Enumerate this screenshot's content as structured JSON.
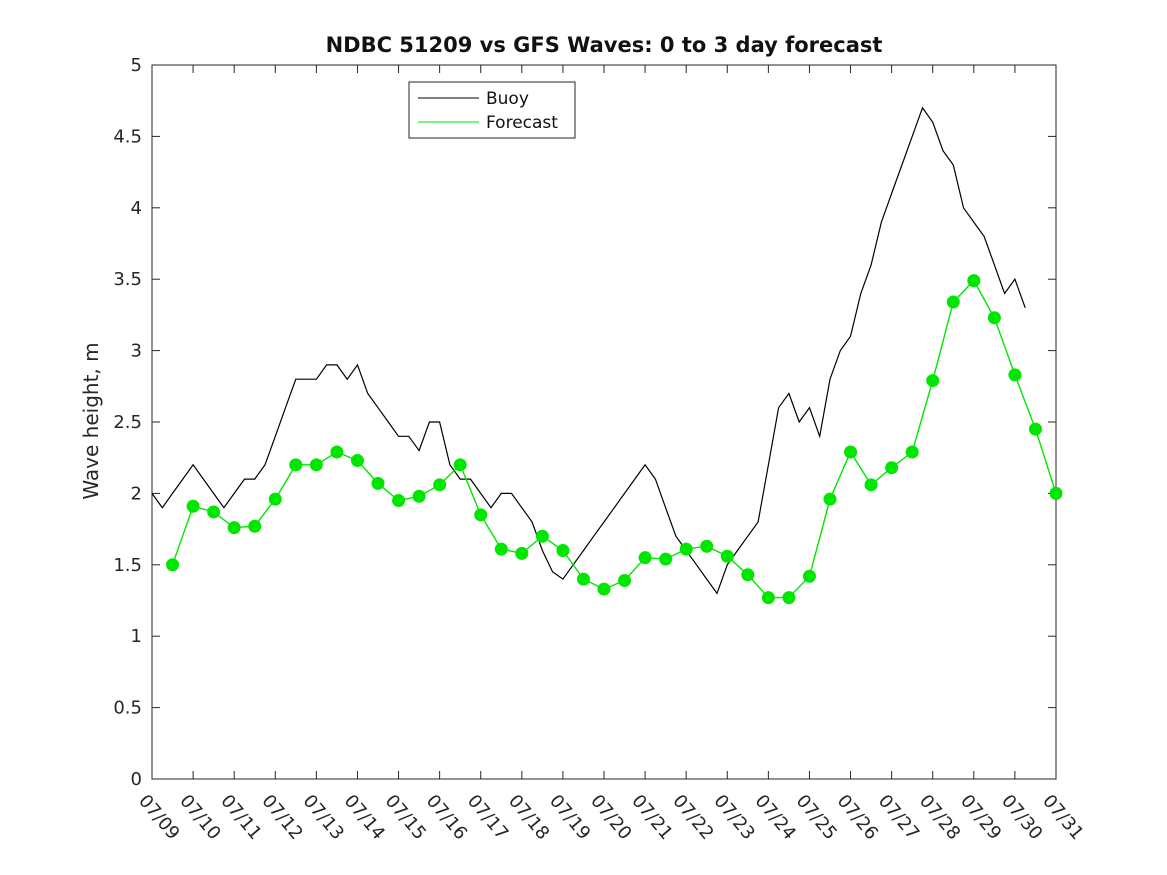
{
  "chart_data": {
    "type": "line",
    "title": "NDBC 51209 vs GFS Waves: 0 to 3 day forecast",
    "ylabel": "Wave height, m",
    "xlabel": "",
    "xlim": [
      0,
      22
    ],
    "ylim": [
      0,
      5
    ],
    "x_tick_labels": [
      "07/09",
      "07/10",
      "07/11",
      "07/12",
      "07/13",
      "07/14",
      "07/15",
      "07/16",
      "07/17",
      "07/18",
      "07/19",
      "07/20",
      "07/21",
      "07/22",
      "07/23",
      "07/24",
      "07/25",
      "07/26",
      "07/27",
      "07/28",
      "07/29",
      "07/30",
      "07/31"
    ],
    "y_ticks": [
      0,
      0.5,
      1,
      1.5,
      2,
      2.5,
      3,
      3.5,
      4,
      4.5,
      5
    ],
    "y_tick_labels": [
      "0",
      "0.5",
      "1",
      "1.5",
      "2",
      "2.5",
      "3",
      "3.5",
      "4",
      "4.5",
      "5"
    ],
    "grid": false,
    "legend_position": "top-center",
    "series": [
      {
        "name": "Buoy",
        "color": "#000000",
        "x": [
          0,
          0.25,
          0.5,
          0.75,
          1,
          1.25,
          1.5,
          1.75,
          2,
          2.25,
          2.5,
          2.75,
          3,
          3.25,
          3.5,
          3.75,
          4,
          4.25,
          4.5,
          4.75,
          5,
          5.25,
          5.5,
          5.75,
          6,
          6.25,
          6.5,
          6.75,
          7,
          7.25,
          7.5,
          7.75,
          8,
          8.25,
          8.5,
          8.75,
          9,
          9.25,
          9.5,
          9.75,
          10,
          10.25,
          10.5,
          10.75,
          11,
          11.25,
          11.5,
          11.75,
          12,
          12.25,
          12.5,
          12.75,
          13,
          13.25,
          13.5,
          13.75,
          14,
          14.25,
          14.5,
          14.75,
          15,
          15.25,
          15.5,
          15.75,
          16,
          16.25,
          16.5,
          16.75,
          17,
          17.25,
          17.5,
          17.75,
          18,
          18.25,
          18.5,
          18.75,
          19,
          19.25,
          19.5,
          19.75,
          20,
          20.25,
          20.5,
          20.75,
          21,
          21.25
        ],
        "y": [
          2.0,
          1.9,
          2.0,
          2.1,
          2.2,
          2.1,
          2.0,
          1.9,
          2.0,
          2.1,
          2.1,
          2.2,
          2.4,
          2.6,
          2.8,
          2.8,
          2.8,
          2.9,
          2.9,
          2.8,
          2.9,
          2.7,
          2.6,
          2.5,
          2.4,
          2.4,
          2.3,
          2.5,
          2.5,
          2.2,
          2.1,
          2.1,
          2.0,
          1.9,
          2.0,
          2.0,
          1.9,
          1.8,
          1.6,
          1.45,
          1.4,
          1.5,
          1.6,
          1.7,
          1.8,
          1.9,
          2.0,
          2.1,
          2.2,
          2.1,
          1.9,
          1.7,
          1.6,
          1.5,
          1.4,
          1.3,
          1.5,
          1.6,
          1.7,
          1.8,
          2.2,
          2.6,
          2.7,
          2.5,
          2.6,
          2.4,
          2.8,
          3.0,
          3.1,
          3.4,
          3.6,
          3.9,
          4.1,
          4.3,
          4.5,
          4.7,
          4.6,
          4.4,
          4.3,
          4.0,
          3.9,
          3.8,
          3.6,
          3.4,
          3.5,
          3.3
        ]
      },
      {
        "name": "Forecast",
        "color": "#00e600",
        "x": [
          0.5,
          1,
          1.5,
          2,
          2.5,
          3,
          3.5,
          4,
          4.5,
          5,
          5.5,
          6,
          6.5,
          7,
          7.5,
          8,
          8.5,
          9,
          9.5,
          10,
          10.5,
          11,
          11.5,
          12,
          12.5,
          13,
          13.5,
          14,
          14.5,
          15,
          15.5,
          16,
          16.5,
          17,
          17.5,
          18,
          18.5,
          19,
          19.5,
          20,
          20.5,
          21,
          21.5,
          22
        ],
        "y": [
          1.5,
          1.91,
          1.87,
          1.76,
          1.77,
          1.96,
          2.2,
          2.2,
          2.29,
          2.23,
          2.07,
          1.95,
          1.98,
          2.06,
          2.2,
          1.85,
          1.61,
          1.58,
          1.7,
          1.6,
          1.4,
          1.33,
          1.39,
          1.55,
          1.54,
          1.61,
          1.63,
          1.56,
          1.43,
          1.27,
          1.27,
          1.42,
          1.96,
          2.29,
          2.06,
          2.18,
          2.29,
          2.79,
          3.34,
          3.49,
          3.23,
          2.83,
          2.45,
          2.0
        ]
      }
    ]
  }
}
